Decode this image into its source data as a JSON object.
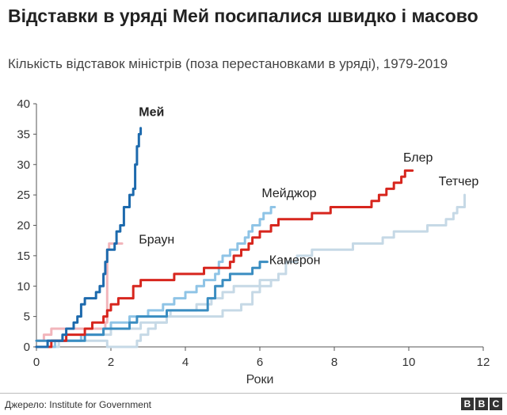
{
  "title": "Відставки в уряді Мей посипалися швидко і масово",
  "subtitle": "Кількість відставок міністрів (поза перестановками в уряді), 1979-2019",
  "source": "Джерело: Institute for Government",
  "logo": [
    "B",
    "B",
    "C"
  ],
  "chart_data": {
    "type": "line",
    "xlabel": "Роки",
    "ylabel": "",
    "xlim": [
      0,
      12
    ],
    "ylim": [
      0,
      40
    ],
    "xticks": [
      0,
      2,
      4,
      6,
      8,
      10,
      12
    ],
    "yticks": [
      0,
      5,
      10,
      15,
      20,
      25,
      30,
      35,
      40
    ],
    "grid": false,
    "series": [
      {
        "name": "Тетчер",
        "color": "#c6d9e6",
        "bold": false,
        "points": [
          [
            0,
            0
          ],
          [
            0.3,
            0
          ],
          [
            0.3,
            1
          ],
          [
            1.9,
            1
          ],
          [
            1.9,
            0
          ],
          [
            2.6,
            0
          ],
          [
            2.7,
            1
          ],
          [
            2.8,
            2
          ],
          [
            3.0,
            3
          ],
          [
            3.2,
            4
          ],
          [
            3.5,
            5
          ],
          [
            3.6,
            6
          ],
          [
            4.0,
            6
          ],
          [
            4.3,
            7
          ],
          [
            4.7,
            8
          ],
          [
            5.0,
            9
          ],
          [
            5.3,
            10
          ],
          [
            5.6,
            10
          ],
          [
            6.0,
            11
          ],
          [
            6.5,
            12
          ],
          [
            6.7,
            14
          ],
          [
            7.0,
            15
          ],
          [
            7.4,
            16
          ],
          [
            8.0,
            16
          ],
          [
            8.5,
            17
          ],
          [
            9.3,
            18
          ],
          [
            9.6,
            19
          ],
          [
            10.3,
            19
          ],
          [
            10.5,
            20
          ],
          [
            11.0,
            21
          ],
          [
            11.2,
            22
          ],
          [
            11.3,
            23
          ],
          [
            11.5,
            25
          ]
        ]
      },
      {
        "name": "Браун",
        "color": "#f2b5bb",
        "bold": false,
        "points": [
          [
            0,
            1
          ],
          [
            0.1,
            1
          ],
          [
            0.2,
            2
          ],
          [
            0.4,
            3
          ],
          [
            1.7,
            3
          ],
          [
            1.85,
            4
          ],
          [
            1.9,
            16
          ],
          [
            1.95,
            17
          ],
          [
            2.3,
            17
          ]
        ]
      },
      {
        "name": "Камерон",
        "color": "#c6d9e6",
        "bold": false,
        "points": [
          [
            0,
            0
          ],
          [
            0.4,
            0
          ],
          [
            0.6,
            1
          ],
          [
            1.0,
            1
          ],
          [
            1.2,
            2
          ],
          [
            1.8,
            2
          ],
          [
            2.0,
            3
          ],
          [
            2.5,
            3
          ],
          [
            2.8,
            4
          ],
          [
            3.3,
            4
          ],
          [
            3.5,
            5
          ],
          [
            4.5,
            5
          ],
          [
            5.0,
            6
          ],
          [
            5.5,
            7
          ],
          [
            5.8,
            9
          ],
          [
            6.0,
            10
          ],
          [
            6.3,
            11
          ],
          [
            6.5,
            12
          ]
        ]
      },
      {
        "name": "Мейджор",
        "color": "#8fc4e6",
        "bold": false,
        "points": [
          [
            0,
            0
          ],
          [
            0.3,
            0
          ],
          [
            0.5,
            1
          ],
          [
            1.0,
            1
          ],
          [
            1.2,
            2
          ],
          [
            1.8,
            3
          ],
          [
            2.0,
            4
          ],
          [
            2.5,
            5
          ],
          [
            3.0,
            6
          ],
          [
            3.4,
            7
          ],
          [
            3.7,
            8
          ],
          [
            4.0,
            9
          ],
          [
            4.3,
            10
          ],
          [
            4.5,
            11
          ],
          [
            4.8,
            12
          ],
          [
            4.9,
            14
          ],
          [
            5.0,
            15
          ],
          [
            5.2,
            16
          ],
          [
            5.4,
            17
          ],
          [
            5.6,
            18
          ],
          [
            5.7,
            19
          ],
          [
            5.8,
            20
          ],
          [
            6.0,
            21
          ],
          [
            6.1,
            22
          ],
          [
            6.3,
            23
          ],
          [
            6.4,
            23
          ]
        ]
      },
      {
        "name": "Камерон",
        "color": "#3a8dc1",
        "bold": false,
        "points": [
          [
            0,
            1
          ],
          [
            0.5,
            1
          ],
          [
            1.0,
            1
          ],
          [
            1.3,
            2
          ],
          [
            1.8,
            3
          ],
          [
            2.2,
            3
          ],
          [
            2.5,
            4
          ],
          [
            2.7,
            5
          ],
          [
            3.2,
            5
          ],
          [
            3.5,
            6
          ],
          [
            4.4,
            6
          ],
          [
            4.6,
            8
          ],
          [
            4.8,
            10
          ],
          [
            5.0,
            11
          ],
          [
            5.2,
            12
          ],
          [
            5.6,
            12
          ],
          [
            5.8,
            13
          ],
          [
            6.0,
            14
          ],
          [
            6.2,
            14
          ]
        ]
      },
      {
        "name": "Блер",
        "color": "#d7261e",
        "bold": false,
        "points": [
          [
            0,
            0
          ],
          [
            0.2,
            0
          ],
          [
            0.4,
            1
          ],
          [
            0.8,
            2
          ],
          [
            1.3,
            3
          ],
          [
            1.5,
            4
          ],
          [
            1.8,
            5
          ],
          [
            1.9,
            6
          ],
          [
            2.0,
            7
          ],
          [
            2.2,
            8
          ],
          [
            2.5,
            8
          ],
          [
            2.6,
            10
          ],
          [
            2.8,
            11
          ],
          [
            3.5,
            11
          ],
          [
            3.7,
            12
          ],
          [
            4.3,
            12
          ],
          [
            4.5,
            13
          ],
          [
            5.2,
            14
          ],
          [
            5.3,
            15
          ],
          [
            5.5,
            16
          ],
          [
            5.7,
            17
          ],
          [
            5.8,
            18
          ],
          [
            6.0,
            19
          ],
          [
            6.3,
            20
          ],
          [
            6.5,
            21
          ],
          [
            7.2,
            21
          ],
          [
            7.4,
            22
          ],
          [
            7.7,
            22
          ],
          [
            7.9,
            23
          ],
          [
            8.8,
            23
          ],
          [
            9.0,
            24
          ],
          [
            9.2,
            25
          ],
          [
            9.4,
            26
          ],
          [
            9.6,
            27
          ],
          [
            9.8,
            28
          ],
          [
            9.9,
            29
          ],
          [
            10.1,
            29
          ]
        ]
      },
      {
        "name": "Мей",
        "color": "#1d6aad",
        "bold": true,
        "points": [
          [
            0,
            0
          ],
          [
            0.3,
            1
          ],
          [
            0.7,
            2
          ],
          [
            0.8,
            3
          ],
          [
            1.0,
            4
          ],
          [
            1.1,
            5
          ],
          [
            1.2,
            7
          ],
          [
            1.3,
            8
          ],
          [
            1.6,
            9
          ],
          [
            1.7,
            10
          ],
          [
            1.8,
            12
          ],
          [
            1.85,
            14
          ],
          [
            1.9,
            16
          ],
          [
            2.1,
            17
          ],
          [
            2.15,
            19
          ],
          [
            2.25,
            20
          ],
          [
            2.35,
            23
          ],
          [
            2.5,
            25
          ],
          [
            2.6,
            26
          ],
          [
            2.65,
            30
          ],
          [
            2.7,
            33
          ],
          [
            2.75,
            35
          ],
          [
            2.8,
            36
          ]
        ]
      }
    ],
    "labels": [
      {
        "text": "Мей",
        "x": 2.75,
        "y": 38,
        "bold": true
      },
      {
        "text": "Браун",
        "x": 2.75,
        "y": 17,
        "bold": false
      },
      {
        "text": "Мейджор",
        "x": 6.05,
        "y": 24.6,
        "bold": false
      },
      {
        "text": "Камерон",
        "x": 6.25,
        "y": 13.6,
        "bold": false
      },
      {
        "text": "Блер",
        "x": 9.85,
        "y": 30.5,
        "bold": false
      },
      {
        "text": "Тетчер",
        "x": 10.8,
        "y": 26.6,
        "bold": false
      }
    ]
  }
}
